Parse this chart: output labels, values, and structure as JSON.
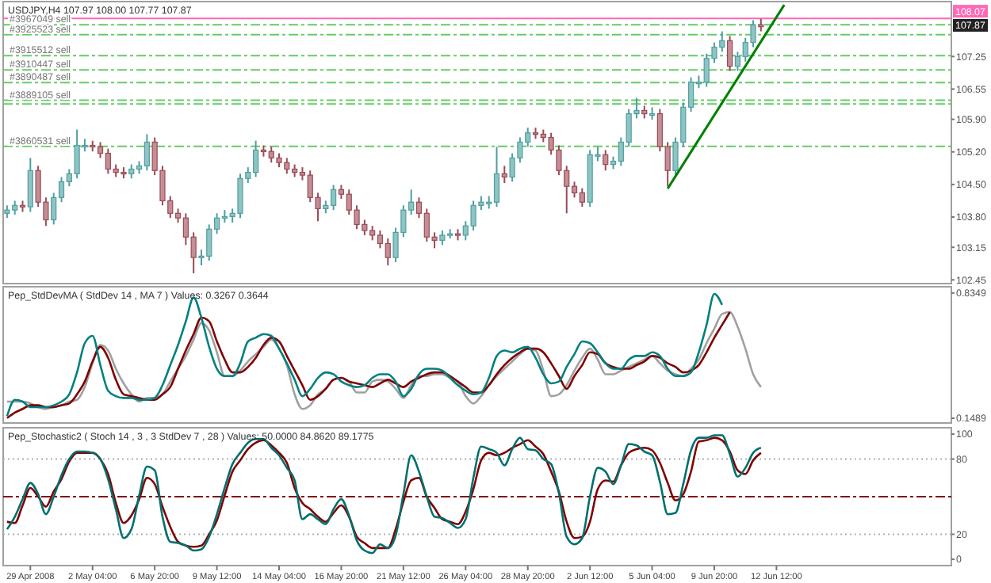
{
  "chart_data": [
    {
      "type": "candlestick",
      "title": "USDJPY,H4 107.97 108.00 107.77 107.87",
      "categories": [
        null,
        null,
        null,
        null,
        null,
        null,
        null,
        null,
        null,
        null,
        null,
        null,
        null,
        null,
        null,
        null,
        null,
        null,
        null,
        null,
        null,
        null,
        null,
        null,
        null,
        null,
        null,
        null,
        null,
        null,
        null,
        null,
        null,
        null,
        null,
        null,
        null,
        null,
        null,
        null,
        null,
        null,
        null,
        null,
        null,
        null,
        null,
        null,
        null,
        null,
        null,
        null,
        null,
        null,
        null,
        null,
        null,
        null,
        null,
        null,
        null,
        null,
        null,
        null,
        null,
        null,
        null,
        null,
        null,
        null,
        null,
        null,
        null,
        null,
        null,
        null,
        null,
        null,
        null,
        null,
        null,
        null,
        null,
        null,
        null,
        null,
        null,
        null,
        null,
        null,
        null,
        null,
        null,
        null,
        null,
        null,
        null,
        null,
        null,
        null,
        null,
        null,
        null,
        null,
        null,
        null,
        null,
        null,
        null,
        null,
        null,
        null,
        null,
        null,
        null,
        null,
        null,
        null,
        null,
        null,
        null,
        null
      ],
      "ohlc": [
        [
          103.88,
          104.05,
          103.78,
          103.95
        ],
        [
          103.95,
          104.15,
          103.85,
          104.05
        ],
        [
          104.05,
          104.15,
          103.91,
          104.02
        ],
        [
          104.02,
          105.07,
          103.91,
          104.8
        ],
        [
          104.8,
          104.9,
          104.02,
          104.12
        ],
        [
          104.12,
          104.22,
          103.61,
          103.74
        ],
        [
          103.74,
          104.32,
          103.64,
          104.22
        ],
        [
          104.22,
          104.66,
          104.12,
          104.56
        ],
        [
          104.56,
          104.83,
          104.46,
          104.73
        ],
        [
          104.73,
          105.68,
          104.63,
          105.34
        ],
        [
          105.34,
          105.48,
          105.21,
          105.34
        ],
        [
          105.34,
          105.44,
          105.21,
          105.31
        ],
        [
          105.31,
          105.41,
          105.07,
          105.17
        ],
        [
          105.17,
          105.27,
          104.73,
          104.83
        ],
        [
          104.83,
          104.93,
          104.66,
          104.76
        ],
        [
          104.76,
          104.87,
          104.63,
          104.73
        ],
        [
          104.73,
          104.93,
          104.63,
          104.83
        ],
        [
          104.83,
          105.0,
          104.73,
          104.9
        ],
        [
          104.9,
          105.58,
          104.8,
          105.41
        ],
        [
          105.41,
          105.51,
          104.7,
          104.8
        ],
        [
          104.8,
          104.9,
          104.05,
          104.15
        ],
        [
          104.15,
          104.25,
          103.78,
          103.88
        ],
        [
          103.88,
          103.98,
          103.68,
          103.78
        ],
        [
          103.78,
          103.88,
          103.2,
          103.37
        ],
        [
          103.37,
          103.47,
          102.59,
          102.93
        ],
        [
          102.93,
          103.1,
          102.76,
          102.96
        ],
        [
          102.96,
          103.64,
          102.86,
          103.54
        ],
        [
          103.54,
          103.88,
          103.44,
          103.78
        ],
        [
          103.78,
          103.95,
          103.68,
          103.81
        ],
        [
          103.81,
          103.98,
          103.68,
          103.88
        ],
        [
          103.88,
          104.73,
          103.78,
          104.63
        ],
        [
          104.63,
          104.87,
          104.53,
          104.76
        ],
        [
          104.76,
          105.44,
          104.66,
          105.24
        ],
        [
          105.24,
          105.34,
          105.1,
          105.21
        ],
        [
          105.21,
          105.31,
          104.97,
          105.07
        ],
        [
          105.07,
          105.17,
          104.87,
          104.97
        ],
        [
          104.97,
          105.07,
          104.73,
          104.83
        ],
        [
          104.83,
          104.93,
          104.66,
          104.76
        ],
        [
          104.76,
          104.87,
          104.59,
          104.7
        ],
        [
          104.7,
          104.8,
          104.12,
          104.22
        ],
        [
          104.22,
          104.32,
          103.71,
          103.98
        ],
        [
          103.98,
          104.15,
          103.88,
          104.05
        ],
        [
          104.05,
          104.49,
          103.95,
          104.39
        ],
        [
          104.39,
          104.49,
          104.19,
          104.29
        ],
        [
          104.29,
          104.39,
          103.85,
          103.95
        ],
        [
          103.95,
          104.05,
          103.54,
          103.64
        ],
        [
          103.64,
          103.74,
          103.41,
          103.51
        ],
        [
          103.51,
          103.61,
          103.3,
          103.41
        ],
        [
          103.41,
          103.51,
          103.13,
          103.23
        ],
        [
          103.23,
          103.34,
          102.76,
          102.93
        ],
        [
          102.93,
          103.57,
          102.83,
          103.47
        ],
        [
          103.47,
          104.05,
          103.37,
          103.95
        ],
        [
          103.95,
          104.39,
          103.85,
          104.12
        ],
        [
          104.12,
          104.22,
          103.78,
          103.88
        ],
        [
          103.88,
          103.98,
          103.27,
          103.37
        ],
        [
          103.37,
          103.47,
          103.13,
          103.3
        ],
        [
          103.3,
          103.51,
          103.2,
          103.41
        ],
        [
          103.41,
          103.54,
          103.34,
          103.44
        ],
        [
          103.44,
          103.54,
          103.3,
          103.41
        ],
        [
          103.41,
          103.71,
          103.3,
          103.61
        ],
        [
          103.61,
          104.15,
          103.51,
          104.05
        ],
        [
          104.05,
          104.25,
          103.95,
          104.12
        ],
        [
          104.12,
          104.25,
          103.98,
          104.12
        ],
        [
          104.12,
          105.31,
          104.02,
          104.73
        ],
        [
          104.73,
          104.9,
          104.53,
          104.66
        ],
        [
          104.66,
          105.17,
          104.56,
          105.07
        ],
        [
          105.07,
          105.51,
          104.97,
          105.41
        ],
        [
          105.41,
          105.72,
          105.31,
          105.61
        ],
        [
          105.61,
          105.72,
          105.48,
          105.58
        ],
        [
          105.58,
          105.68,
          105.41,
          105.51
        ],
        [
          105.51,
          105.61,
          105.14,
          105.24
        ],
        [
          105.24,
          105.34,
          104.7,
          104.8
        ],
        [
          104.8,
          104.9,
          103.88,
          104.46
        ],
        [
          104.46,
          104.56,
          104.22,
          104.32
        ],
        [
          104.32,
          104.42,
          104.02,
          104.12
        ],
        [
          104.12,
          105.24,
          104.02,
          105.14
        ],
        [
          105.14,
          105.31,
          105.0,
          105.14
        ],
        [
          105.14,
          105.24,
          104.8,
          104.93
        ],
        [
          104.93,
          105.1,
          104.83,
          105.0
        ],
        [
          105.0,
          105.51,
          104.9,
          105.41
        ],
        [
          105.41,
          106.12,
          105.31,
          106.02
        ],
        [
          106.02,
          106.36,
          105.92,
          106.09
        ],
        [
          106.09,
          106.19,
          105.92,
          106.02
        ],
        [
          106.02,
          106.16,
          105.89,
          106.02
        ],
        [
          106.02,
          106.12,
          105.21,
          105.31
        ],
        [
          105.31,
          105.41,
          104.46,
          104.8
        ],
        [
          104.8,
          105.51,
          104.7,
          105.41
        ],
        [
          105.41,
          106.26,
          105.31,
          106.16
        ],
        [
          106.16,
          106.8,
          106.06,
          106.7
        ],
        [
          106.7,
          106.84,
          106.57,
          106.7
        ],
        [
          106.7,
          107.31,
          106.6,
          107.21
        ],
        [
          107.21,
          107.55,
          107.11,
          107.45
        ],
        [
          107.45,
          107.79,
          107.35,
          107.59
        ],
        [
          107.59,
          107.69,
          106.94,
          107.04
        ],
        [
          107.04,
          107.35,
          106.94,
          107.25
        ],
        [
          107.25,
          107.65,
          107.14,
          107.55
        ],
        [
          107.55,
          108.03,
          107.45,
          107.93
        ],
        [
          107.93,
          108.06,
          107.79,
          107.89
        ],
        null,
        null,
        null,
        null,
        null,
        null,
        null,
        null,
        null,
        null,
        null,
        null,
        null,
        null,
        null,
        null,
        null,
        null,
        null,
        null,
        null,
        null,
        null,
        null
      ],
      "series": [
        {
          "type": "line",
          "color": "#008000",
          "values": [
            null,
            null,
            null,
            null,
            null,
            null,
            null,
            null,
            null,
            null,
            null,
            null,
            null,
            null,
            null,
            null,
            null,
            null,
            null,
            null,
            null,
            null,
            null,
            null,
            null,
            null,
            null,
            null,
            null,
            null,
            null,
            null,
            null,
            null,
            null,
            null,
            null,
            null,
            null,
            null,
            null,
            null,
            null,
            null,
            null,
            null,
            null,
            null,
            null,
            null,
            null,
            null,
            null,
            null,
            null,
            null,
            null,
            null,
            null,
            null,
            null,
            null,
            null,
            null,
            null,
            null,
            null,
            null,
            null,
            null,
            null,
            null,
            null,
            null,
            null,
            null,
            null,
            null,
            null,
            null,
            null,
            null,
            null,
            null,
            null,
            104.41,
            null,
            null,
            null,
            null,
            null,
            null,
            null,
            null,
            null,
            null,
            null,
            null,
            null,
            null,
            108.36,
            null,
            null,
            null,
            null,
            null,
            null,
            null,
            null,
            null,
            null,
            null,
            null,
            null,
            null,
            null,
            null,
            null,
            null,
            null,
            null,
            null
          ]
        }
      ],
      "ylim": [
        102.37,
        108.43
      ],
      "yticks": [
        107.25,
        106.55,
        {
          "value": 105.9,
          "label": "105.90"
        },
        {
          "value": 105.2,
          "label": "105.20"
        },
        {
          "value": 104.5,
          "label": "104.50"
        },
        {
          "value": 103.8,
          "label": "103.80"
        },
        103.15,
        102.45
      ],
      "ref_lines": [
        {
          "axis": "y",
          "value": 108.07,
          "label": "108.07",
          "color": "#ff69b4",
          "line_style": "solid"
        },
        {
          "axis": "y",
          "value": 107.93,
          "label": "#3967049 sell",
          "color": "#66cc66",
          "line_style": "dashed"
        },
        {
          "axis": "y",
          "value": 107.72,
          "label": "#3925523 sell",
          "color": "#66cc66",
          "line_style": "dashed"
        },
        {
          "axis": "y",
          "value": 107.27,
          "label": "#3915512 sell",
          "color": "#66cc66",
          "line_style": "dashed"
        },
        {
          "axis": "y",
          "value": 106.96,
          "label": "#3910447 sell",
          "color": "#66cc66",
          "line_style": "dashed"
        },
        {
          "axis": "y",
          "value": 106.69,
          "label": "#3890487 sell",
          "color": "#66cc66",
          "line_style": "dashed"
        },
        {
          "axis": "y",
          "value": 106.31,
          "label": "#3889105 sell",
          "color": "#66cc66",
          "line_style": "dashed"
        },
        {
          "axis": "y",
          "value": 106.23,
          "color": "#66cc66",
          "line_style": "dashed"
        },
        {
          "axis": "y",
          "value": 105.32,
          "label": "#3860531 sell",
          "color": "#66cc66",
          "line_style": "dashed"
        }
      ],
      "annotations": [
        "107.87"
      ]
    },
    {
      "type": "line",
      "title": "Pep_StdDevMA ( StdDev 14 , MA 7 ) Values: 0.3267 0.3644",
      "categories": [
        null,
        null,
        null,
        null,
        null,
        null,
        null,
        null,
        null,
        null,
        null,
        null,
        null,
        null,
        null,
        null,
        null,
        null,
        null,
        null,
        null,
        null,
        null,
        null,
        null,
        null,
        null,
        null,
        null,
        null,
        null,
        null,
        null,
        null,
        null,
        null,
        null,
        null,
        null,
        null,
        null,
        null,
        null,
        null,
        null,
        null,
        null,
        null,
        null,
        null,
        null,
        null,
        null,
        null,
        null,
        null,
        null,
        null,
        null,
        null,
        null,
        null,
        null,
        null,
        null,
        null,
        null,
        null,
        null,
        null,
        null,
        null,
        null,
        null,
        null,
        null,
        null,
        null,
        null,
        null,
        null,
        null,
        null,
        null,
        null,
        null,
        null,
        null,
        null,
        null,
        null,
        null,
        null,
        null,
        null,
        null,
        null,
        null,
        null,
        null,
        null,
        null,
        null,
        null,
        null,
        null,
        null,
        null,
        null,
        null,
        null,
        null,
        null,
        null,
        null,
        null,
        null,
        null,
        null,
        null,
        null,
        null
      ],
      "series": [
        {
          "color": "#a0a0a0",
          "values": [
            0.24,
            0.24,
            0.24,
            0.23,
            0.21,
            0.2,
            0.21,
            0.22,
            0.24,
            0.25,
            0.32,
            0.45,
            0.55,
            0.52,
            0.42,
            0.34,
            0.28,
            0.24,
            0.26,
            0.26,
            0.28,
            0.35,
            0.42,
            0.49,
            0.58,
            0.67,
            0.63,
            0.51,
            0.38,
            0.38,
            0.41,
            0.46,
            0.5,
            0.54,
            0.58,
            0.53,
            0.44,
            0.28,
            0.2,
            0.22,
            0.28,
            0.31,
            0.36,
            0.37,
            0.35,
            0.29,
            0.29,
            0.35,
            0.36,
            0.35,
            0.31,
            0.26,
            0.33,
            0.38,
            0.38,
            0.39,
            0.39,
            0.37,
            0.35,
            0.27,
            0.23,
            0.27,
            0.33,
            0.38,
            0.42,
            0.46,
            0.5,
            0.53,
            0.52,
            0.41,
            0.27,
            0.28,
            0.33,
            0.41,
            0.48,
            0.53,
            0.47,
            0.39,
            0.39,
            0.41,
            0.43,
            0.45,
            0.47,
            0.49,
            0.45,
            0.41,
            0.39,
            0.38,
            0.42,
            0.47,
            0.56,
            0.64,
            0.72,
            0.73,
            0.65,
            0.53,
            0.39,
            0.32,
            null,
            null,
            null,
            null,
            null,
            null,
            null,
            null,
            null,
            null,
            null,
            null,
            null,
            null,
            null,
            null,
            null,
            null,
            null,
            null,
            null,
            null,
            null,
            null
          ]
        },
        {
          "color": "#800000",
          "values": [
            0.15,
            0.18,
            0.2,
            0.22,
            0.22,
            0.21,
            0.21,
            0.22,
            0.23,
            0.28,
            0.35,
            0.46,
            0.54,
            0.48,
            0.36,
            0.28,
            0.27,
            0.26,
            0.25,
            0.25,
            0.28,
            0.32,
            0.42,
            0.52,
            0.61,
            0.7,
            0.68,
            0.57,
            0.47,
            0.4,
            0.4,
            0.43,
            0.48,
            0.55,
            0.59,
            0.57,
            0.49,
            0.41,
            0.33,
            0.25,
            0.27,
            0.31,
            0.36,
            0.37,
            0.35,
            0.34,
            0.33,
            0.32,
            0.34,
            0.36,
            0.34,
            0.32,
            0.35,
            0.37,
            0.39,
            0.4,
            0.4,
            0.38,
            0.35,
            0.32,
            0.29,
            0.29,
            0.33,
            0.39,
            0.44,
            0.48,
            0.51,
            0.53,
            0.53,
            0.51,
            0.45,
            0.38,
            0.31,
            0.38,
            0.44,
            0.51,
            0.5,
            0.45,
            0.43,
            0.42,
            0.42,
            0.44,
            0.46,
            0.49,
            0.48,
            0.45,
            0.43,
            0.4,
            0.41,
            0.44,
            0.51,
            0.59,
            0.66,
            0.73,
            null,
            null,
            null,
            null,
            null,
            null,
            null,
            null,
            null,
            null,
            null,
            null,
            null,
            null,
            null,
            null,
            null,
            null,
            null,
            null,
            null,
            null,
            null,
            null,
            null,
            null,
            null,
            null
          ]
        },
        {
          "color": "#008080",
          "values": [
            0.16,
            0.25,
            0.24,
            0.21,
            0.21,
            0.21,
            0.22,
            0.24,
            0.28,
            0.4,
            0.56,
            0.6,
            0.44,
            0.3,
            0.27,
            0.26,
            0.26,
            0.25,
            0.25,
            0.26,
            0.33,
            0.44,
            0.55,
            0.68,
            0.81,
            0.7,
            0.54,
            0.42,
            0.38,
            0.38,
            0.45,
            0.57,
            0.59,
            0.61,
            0.6,
            0.53,
            0.45,
            0.36,
            0.27,
            0.31,
            0.37,
            0.4,
            0.39,
            0.35,
            0.33,
            0.32,
            0.33,
            0.37,
            0.39,
            0.39,
            0.35,
            0.27,
            0.31,
            0.39,
            0.42,
            0.42,
            0.41,
            0.37,
            0.33,
            0.3,
            0.28,
            0.29,
            0.37,
            0.49,
            0.52,
            0.51,
            0.53,
            0.54,
            0.48,
            0.39,
            0.34,
            0.35,
            0.43,
            0.5,
            0.57,
            0.56,
            0.51,
            0.45,
            0.42,
            0.42,
            0.47,
            0.49,
            0.49,
            0.51,
            0.49,
            0.42,
            0.38,
            0.38,
            0.4,
            0.51,
            0.66,
            0.83,
            0.77,
            null,
            null,
            null,
            null,
            null,
            null,
            null,
            null,
            null,
            null,
            null,
            null,
            null,
            null,
            null,
            null,
            null,
            null,
            null,
            null,
            null,
            null,
            null,
            null,
            null,
            null,
            null,
            null,
            null
          ]
        }
      ],
      "ylim": [
        0.123,
        0.869
      ],
      "yticks": [
        0.8349,
        0.1489
      ]
    },
    {
      "type": "line",
      "title": "Pep_Stochastic2 ( Stoch 14 , 3 , 3 StdDev 7 , 28 ) Values: 50.0000 84.8620 89.1775",
      "categories": [
        null,
        null,
        null,
        "29 Apr 2008",
        null,
        null,
        null,
        null,
        null,
        null,
        null,
        "2 May 04:00",
        null,
        null,
        null,
        null,
        null,
        null,
        null,
        "6 May 20:00",
        null,
        null,
        null,
        null,
        null,
        null,
        null,
        "9 May 12:00",
        null,
        null,
        null,
        null,
        null,
        null,
        null,
        "14 May 04:00",
        null,
        null,
        null,
        null,
        null,
        null,
        null,
        "16 May 20:00",
        null,
        null,
        null,
        null,
        null,
        null,
        null,
        "21 May 12:00",
        null,
        null,
        null,
        null,
        null,
        null,
        null,
        "26 May 04:00",
        null,
        null,
        null,
        null,
        null,
        null,
        null,
        "28 May 20:00",
        null,
        null,
        null,
        null,
        null,
        null,
        null,
        "2 Jun 12:00",
        null,
        null,
        null,
        null,
        null,
        null,
        null,
        "5 Jun 04:00",
        null,
        null,
        null,
        null,
        null,
        null,
        null,
        "9 Jun 20:00",
        null,
        null,
        null,
        null,
        null,
        null,
        null,
        "12 Jun 12:00",
        null,
        null,
        null,
        null,
        null,
        null,
        null,
        null,
        null,
        null,
        null,
        null,
        null,
        null,
        null,
        null,
        null,
        null,
        null,
        null,
        null,
        null
      ],
      "series": [
        {
          "color": "#800000",
          "values": [
            30,
            29,
            43,
            57,
            50,
            42,
            54,
            64,
            78,
            85,
            85,
            85,
            80,
            68,
            45,
            29,
            35,
            48,
            65,
            60,
            42,
            26,
            14,
            11,
            10,
            11,
            20,
            31,
            51,
            70,
            79,
            88,
            93,
            95,
            91,
            85,
            77,
            57,
            45,
            40,
            34,
            30,
            37,
            43,
            34,
            18,
            13,
            9,
            9,
            9,
            24,
            46,
            63,
            65,
            50,
            41,
            32,
            30,
            28,
            38,
            56,
            79,
            85,
            83,
            85,
            89,
            92,
            95,
            90,
            84,
            70,
            54,
            30,
            17,
            18,
            30,
            56,
            63,
            62,
            75,
            85,
            88,
            89,
            87,
            77,
            61,
            47,
            52,
            70,
            94,
            95,
            97,
            95,
            86,
            71,
            68,
            79,
            85,
            null,
            null,
            null,
            null,
            null,
            null,
            null,
            null,
            null,
            null,
            null,
            null,
            null,
            null,
            null,
            null,
            null,
            null,
            null,
            null,
            null,
            null,
            null,
            null
          ]
        },
        {
          "color": "#006f6f",
          "values": [
            24,
            34,
            48,
            61,
            52,
            36,
            50,
            67,
            80,
            86,
            86,
            85,
            80,
            64,
            40,
            17,
            24,
            51,
            74,
            71,
            34,
            14,
            13,
            11,
            7,
            8,
            18,
            36,
            57,
            76,
            85,
            93,
            96,
            96,
            89,
            83,
            73,
            63,
            32,
            36,
            32,
            28,
            40,
            48,
            35,
            15,
            7,
            5,
            12,
            9,
            19,
            52,
            83,
            70,
            50,
            34,
            33,
            29,
            25,
            32,
            65,
            90,
            88,
            85,
            75,
            88,
            97,
            88,
            87,
            80,
            76,
            53,
            18,
            12,
            17,
            50,
            73,
            70,
            60,
            75,
            92,
            91,
            86,
            83,
            62,
            36,
            37,
            60,
            87,
            97,
            97,
            99,
            99,
            84,
            66,
            73,
            85,
            89,
            null,
            null,
            null,
            null,
            null,
            null,
            null,
            null,
            null,
            null,
            null,
            null,
            null,
            null,
            null,
            null,
            null,
            null,
            null,
            null,
            null,
            null,
            null,
            null
          ]
        }
      ],
      "ylim": [
        -5,
        105
      ],
      "yticks": [
        100,
        80,
        20,
        0
      ],
      "ref_lines": [
        {
          "axis": "y",
          "value": 80,
          "color": "#b0b0b0",
          "line_style": "dotted"
        },
        {
          "axis": "y",
          "value": 20,
          "color": "#b0b0b0",
          "line_style": "dotted"
        },
        {
          "axis": "y",
          "value": 50,
          "color": "#800000",
          "line_style": "dashed"
        }
      ]
    }
  ]
}
